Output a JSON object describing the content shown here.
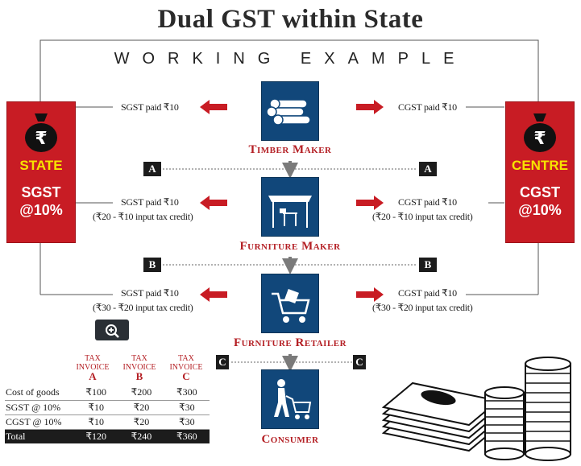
{
  "title": "Dual GST within State",
  "subtitle": "WORKING EXAMPLE",
  "state_box": {
    "tag": "STATE",
    "line1": "SGST",
    "line2": "@10%"
  },
  "centre_box": {
    "tag": "CENTRE",
    "line1": "CGST",
    "line2": "@10%"
  },
  "steps": [
    {
      "name": "Timber Maker",
      "icon": "timber-logs-icon"
    },
    {
      "name": "Furniture Maker",
      "icon": "furniture-stall-icon"
    },
    {
      "name": "Furniture Retailer",
      "icon": "shopping-cart-icon"
    },
    {
      "name": "Consumer",
      "icon": "person-with-cart-icon"
    }
  ],
  "payments": [
    {
      "sgst": "SGST paid ₹10",
      "cgst": "CGST paid ₹10",
      "credit": ""
    },
    {
      "sgst": "SGST paid ₹10",
      "cgst": "CGST paid ₹10",
      "credit": "(₹20 - ₹10 input tax credit)"
    },
    {
      "sgst": "SGST paid ₹10",
      "cgst": "CGST paid ₹10",
      "credit": "(₹30 - ₹20 input tax credit)"
    }
  ],
  "markers": [
    "A",
    "B",
    "C"
  ],
  "invoice_table": {
    "header_prefix": "TAX INVOICE",
    "columns": [
      "A",
      "B",
      "C"
    ],
    "rows": [
      {
        "label": "Cost of goods",
        "values": [
          "₹100",
          "₹200",
          "₹300"
        ]
      },
      {
        "label": "SGST @ 10%",
        "values": [
          "₹10",
          "₹20",
          "₹30"
        ]
      },
      {
        "label": "CGST @ 10%",
        "values": [
          "₹10",
          "₹20",
          "₹30"
        ]
      },
      {
        "label": "Total",
        "values": [
          "₹120",
          "₹240",
          "₹360"
        ]
      }
    ]
  },
  "zoom_icon": "zoom-in-icon",
  "colors": {
    "red": "#c81c24",
    "navy": "#11477a",
    "yellow": "#f6e300",
    "dark": "#1c1c1c"
  }
}
